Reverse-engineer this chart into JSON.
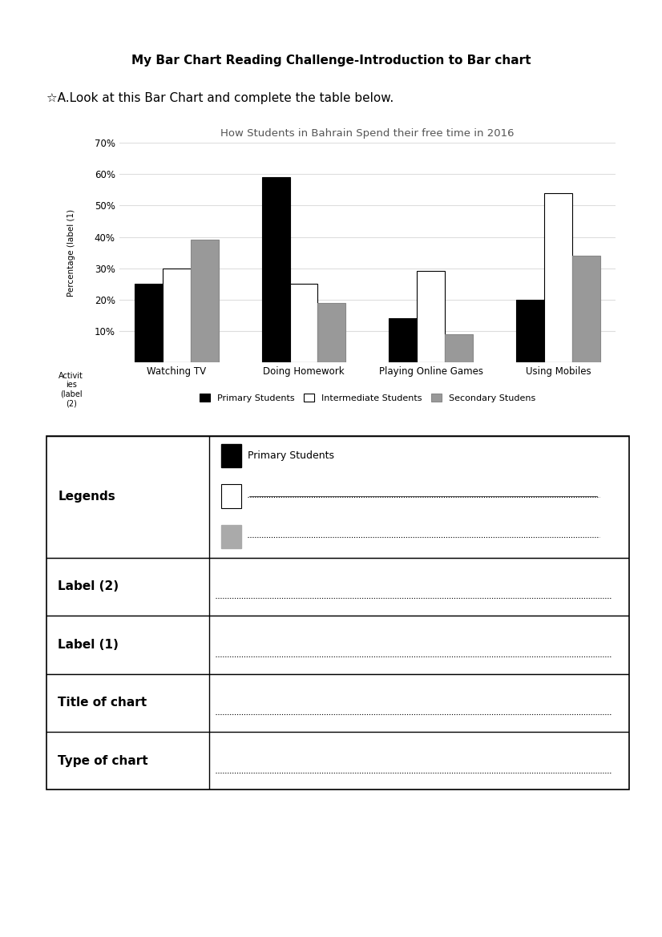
{
  "page_title": "My Bar Chart Reading Challenge-Introduction to Bar chart",
  "instruction": "☆A.Look at this Bar Chart and complete the table below.",
  "chart_title": "How Students in Bahrain Spend their free time in 2016",
  "ylabel_text": "Percentage (label (1)",
  "xlabel_text": "Activit\nies\n(label\n(2)",
  "categories": [
    "Watching TV",
    "Doing Homework",
    "Playing Online Games",
    "Using Mobiles"
  ],
  "series": [
    "Primary Students",
    "Intermediate Students",
    "Secondary Studens"
  ],
  "colors": [
    "#000000",
    "#ffffff",
    "#999999"
  ],
  "bar_edge_colors": [
    "#000000",
    "#000000",
    "#888888"
  ],
  "values": {
    "Primary Students": [
      25,
      59,
      14,
      20
    ],
    "Intermediate Students": [
      30,
      25,
      29,
      54
    ],
    "Secondary Studens": [
      39,
      19,
      9,
      34
    ]
  },
  "ylim": [
    0,
    70
  ],
  "yticks": [
    10,
    20,
    30,
    40,
    50,
    60,
    70
  ],
  "ytick_labels": [
    "10%",
    "20%",
    "30%",
    "40%",
    "50%",
    "60%",
    "70%"
  ],
  "table_rows": [
    "Type of chart",
    "Title of chart",
    "Label (1)",
    "Label (2)",
    "Legends"
  ],
  "bg_color": "#ffffff"
}
